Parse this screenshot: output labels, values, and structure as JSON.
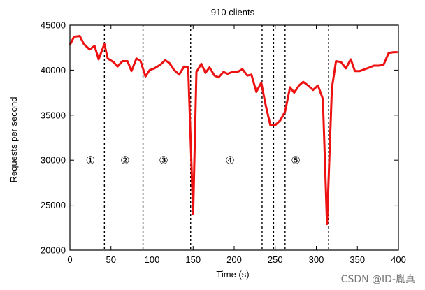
{
  "chart_data": {
    "type": "line",
    "title": "910 clients",
    "xlabel": "Time (s)",
    "ylabel": "Requests per second",
    "xlim": [
      0,
      400
    ],
    "ylim": [
      20000,
      45000
    ],
    "xticks": [
      0,
      50,
      100,
      150,
      200,
      250,
      300,
      350,
      400
    ],
    "yticks": [
      20000,
      25000,
      30000,
      35000,
      40000,
      45000
    ],
    "grid": false,
    "legend": "none",
    "series": [
      {
        "color": "#ee1111",
        "x": [
          0,
          5,
          12,
          17,
          24,
          30,
          35,
          42,
          46,
          53,
          58,
          64,
          70,
          75,
          81,
          86,
          92,
          97,
          103,
          110,
          116,
          121,
          127,
          133,
          139,
          144,
          150,
          154,
          160,
          165,
          170,
          176,
          181,
          187,
          192,
          198,
          204,
          210,
          216,
          221,
          227,
          233,
          238,
          244,
          250,
          256,
          262,
          268,
          273,
          279,
          284,
          290,
          296,
          302,
          308,
          313,
          319,
          324,
          330,
          336,
          342,
          347,
          353,
          359,
          365,
          370,
          376,
          382,
          388,
          394,
          399
        ],
        "y": [
          42800,
          43700,
          43800,
          42900,
          42300,
          42700,
          41200,
          42900,
          41300,
          40900,
          40400,
          41000,
          41000,
          39900,
          41300,
          41000,
          39300,
          40000,
          40200,
          40600,
          41100,
          40800,
          40000,
          39500,
          40400,
          40300,
          24000,
          39800,
          40700,
          39700,
          40300,
          39400,
          39200,
          39800,
          39600,
          39800,
          39800,
          40100,
          39400,
          39500,
          37600,
          38600,
          36300,
          33900,
          33900,
          34400,
          35400,
          38100,
          37500,
          38300,
          38700,
          38300,
          37800,
          38300,
          36800,
          22900,
          38000,
          41000,
          40900,
          40200,
          41200,
          39900,
          39900,
          40100,
          40300,
          40500,
          40500,
          40600,
          41900,
          42000,
          42000
        ]
      }
    ],
    "phase_boundaries": [
      42,
      89,
      147,
      234,
      248,
      262,
      315
    ],
    "phase_markers": [
      {
        "label": "①",
        "x": 25
      },
      {
        "label": "②",
        "x": 67
      },
      {
        "label": "③",
        "x": 114
      },
      {
        "label": "④",
        "x": 195
      },
      {
        "label": "⑤",
        "x": 275
      }
    ],
    "phase_marker_y": 30000
  },
  "watermark": "CSDN @ID-胤真"
}
